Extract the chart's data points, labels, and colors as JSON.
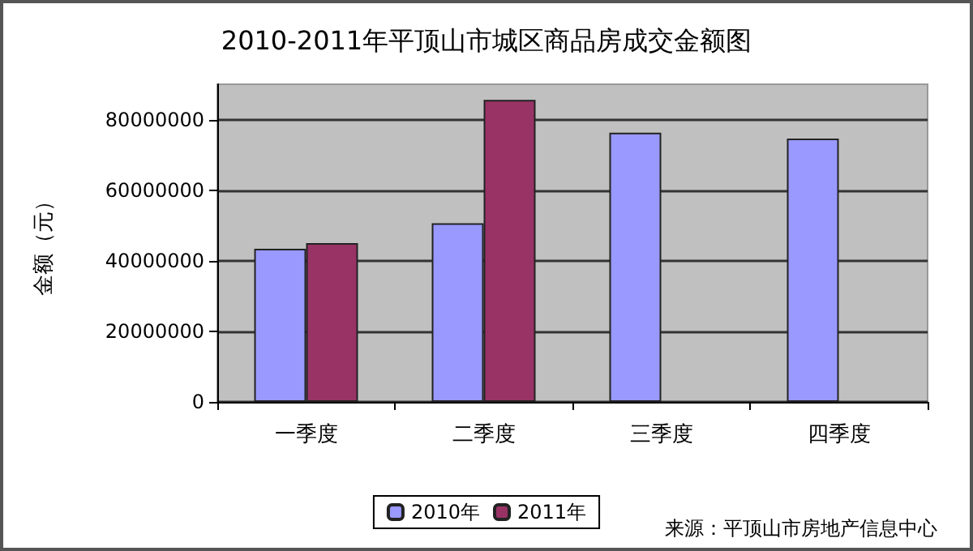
{
  "chart_data": {
    "type": "bar",
    "title": "2010-2011年平顶山市城区商品房成交金额图",
    "ylabel": "金额（元）",
    "categories": [
      "一季度",
      "二季度",
      "三季度",
      "四季度"
    ],
    "series": [
      {
        "name": "2010年",
        "color": "#9999ff",
        "values": [
          43400000,
          50600000,
          76300000,
          74600000
        ]
      },
      {
        "name": "2011年",
        "color": "#993366",
        "values": [
          45000000,
          85600000,
          null,
          null
        ]
      }
    ],
    "ylim": [
      0,
      90000000
    ],
    "yticks": [
      0,
      20000000,
      40000000,
      60000000,
      80000000
    ],
    "grid": "y",
    "legend": "bottom",
    "annotations": [
      "来源：平顶山市房地产信息中心"
    ]
  }
}
